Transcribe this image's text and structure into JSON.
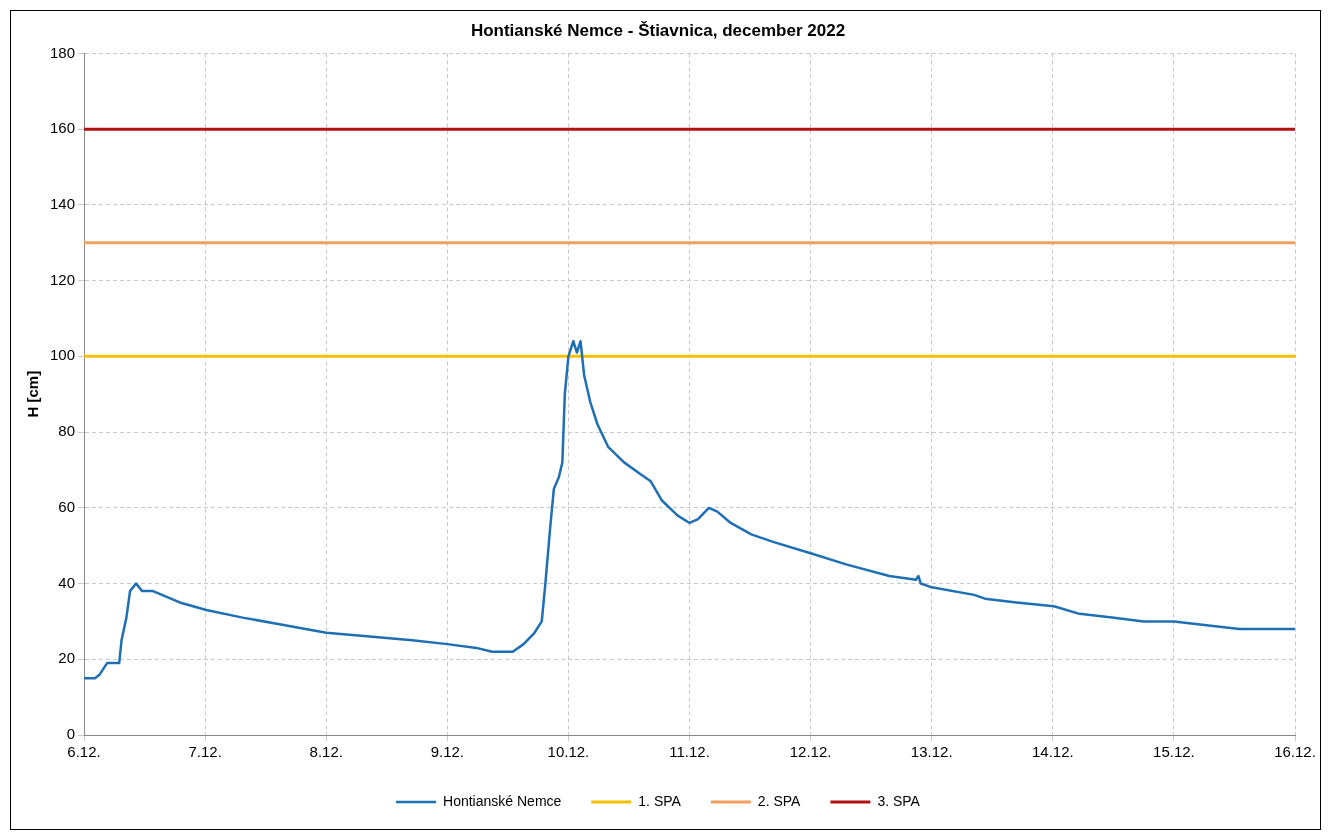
{
  "chart_data": {
    "type": "line",
    "title": "Hontianské Nemce - Štiavnica, december 2022",
    "ylabel": "H [cm]",
    "xlim": [
      "2022-12-06",
      "2022-12-16"
    ],
    "xticks": [
      {
        "value": "2022-12-06",
        "label": "6.12."
      },
      {
        "value": "2022-12-07",
        "label": "7.12."
      },
      {
        "value": "2022-12-08",
        "label": "8.12."
      },
      {
        "value": "2022-12-09",
        "label": "9.12."
      },
      {
        "value": "2022-12-10",
        "label": "10.12."
      },
      {
        "value": "2022-12-11",
        "label": "11.12."
      },
      {
        "value": "2022-12-12",
        "label": "12.12."
      },
      {
        "value": "2022-12-13",
        "label": "13.12."
      },
      {
        "value": "2022-12-14",
        "label": "14.12."
      },
      {
        "value": "2022-12-15",
        "label": "15.12."
      },
      {
        "value": "2022-12-16",
        "label": "16.12."
      }
    ],
    "ylim": [
      0,
      180
    ],
    "yticks": [
      0,
      20,
      40,
      60,
      80,
      100,
      120,
      140,
      160,
      180
    ],
    "grid": true,
    "legend": "bottom",
    "series": [
      {
        "name": "Hontianské Nemce",
        "color": "#1f6fb4",
        "x": [
          "2022-12-06T00:00",
          "2022-12-06T02:10",
          "2022-12-06T03:07",
          "2022-12-06T04:34",
          "2022-12-06T06:58",
          "2022-12-06T07:26",
          "2022-12-06T08:24",
          "2022-12-06T09:07",
          "2022-12-06T10:19",
          "2022-12-06T11:31",
          "2022-12-06T13:41",
          "2022-12-06T18:58",
          "2022-12-07T00:14",
          "2022-12-07T07:26",
          "2022-12-07T15:50",
          "2022-12-08T00:00",
          "2022-12-08T08:38",
          "2022-12-08T17:02",
          "2022-12-09T00:00",
          "2022-12-09T05:46",
          "2022-12-09T08:53",
          "2022-12-09T12:58",
          "2022-12-09T15:07",
          "2022-12-09T17:17",
          "2022-12-09T18:43",
          "2022-12-09T19:26",
          "2022-12-09T20:24",
          "2022-12-09T21:07",
          "2022-12-09T22:05",
          "2022-12-09T22:48",
          "2022-12-09T23:17",
          "2022-12-10T00:00",
          "2022-12-10T00:58",
          "2022-12-10T01:41",
          "2022-12-10T02:24",
          "2022-12-10T03:07",
          "2022-12-10T04:19",
          "2022-12-10T05:46",
          "2022-12-10T07:55",
          "2022-12-10T11:02",
          "2022-12-10T14:10",
          "2022-12-10T16:19",
          "2022-12-10T18:29",
          "2022-12-10T21:36",
          "2022-12-11T00:00",
          "2022-12-11T01:41",
          "2022-12-11T03:50",
          "2022-12-11T05:31",
          "2022-12-11T08:10",
          "2022-12-11T12:14",
          "2022-12-11T16:34",
          "2022-12-12T00:00",
          "2022-12-12T07:12",
          "2022-12-12T15:36",
          "2022-12-12T20:53",
          "2022-12-12T21:22",
          "2022-12-12T21:50",
          "2022-12-13T00:00",
          "2022-12-13T08:24",
          "2022-12-13T10:34",
          "2022-12-13T16:48",
          "2022-12-14T00:14",
          "2022-12-14T05:17",
          "2022-12-14T11:46",
          "2022-12-14T18:00",
          "2022-12-15T00:00",
          "2022-12-15T06:29",
          "2022-12-15T12:58",
          "2022-12-16T00:00"
        ],
        "values": [
          15,
          15,
          16,
          19,
          19,
          25,
          31,
          38,
          40,
          38,
          38,
          35,
          33,
          31,
          29,
          27,
          26,
          25,
          24,
          23,
          22,
          22,
          24,
          27,
          30,
          40,
          55,
          65,
          68,
          72,
          90,
          100,
          104,
          101,
          104,
          95,
          88,
          82,
          76,
          72,
          69,
          67,
          62,
          58,
          56,
          57,
          60,
          59,
          56,
          53,
          51,
          48,
          45,
          42,
          41,
          42,
          40,
          39,
          37,
          36,
          35,
          34,
          32,
          31,
          30,
          30,
          29,
          28,
          28
        ]
      }
    ],
    "ref_lines": [
      {
        "axis": "y",
        "value": 100,
        "label": "1. SPA",
        "color": "#f5c000"
      },
      {
        "axis": "y",
        "value": 130,
        "label": "2. SPA",
        "color": "#f0a060"
      },
      {
        "axis": "y",
        "value": 160,
        "label": "3. SPA",
        "color": "#b01010"
      }
    ]
  }
}
